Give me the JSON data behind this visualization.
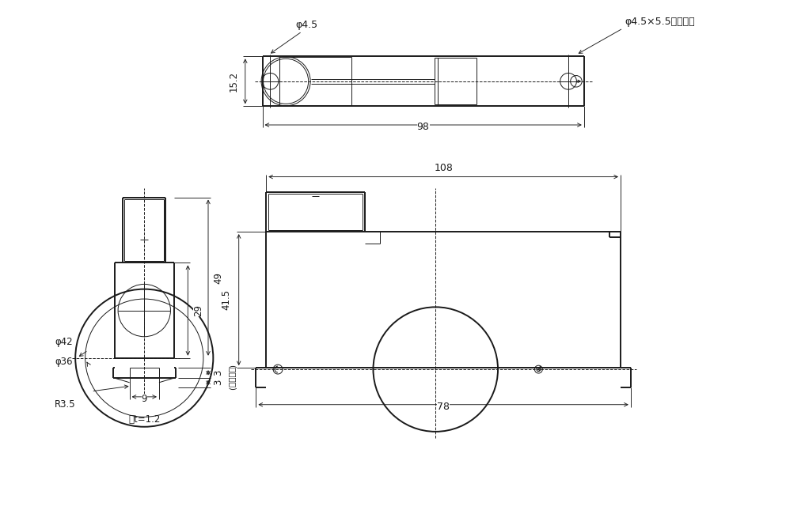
{
  "bg_color": "#ffffff",
  "line_color": "#1a1a1a",
  "thin_lw": 0.7,
  "thick_lw": 1.4,
  "dim_lw": 0.65,
  "annotations": {
    "phi45_top": "φ4.5",
    "phi45x55": "φ4.5×5.5スロット",
    "dim_152": "15.2",
    "dim_98": "98",
    "dim_108": "108",
    "dim_415": "41.5",
    "dim_78": "78",
    "dim_29": "29",
    "dim_49": "49",
    "dim_3a": "3",
    "dim_3b": "3",
    "dim_9": "9",
    "phi42": "φ42",
    "phi36": "φ36",
    "R35": "R3.5",
    "frame_t": "枟t=1.2",
    "adj_note": "(調整寸法)"
  }
}
